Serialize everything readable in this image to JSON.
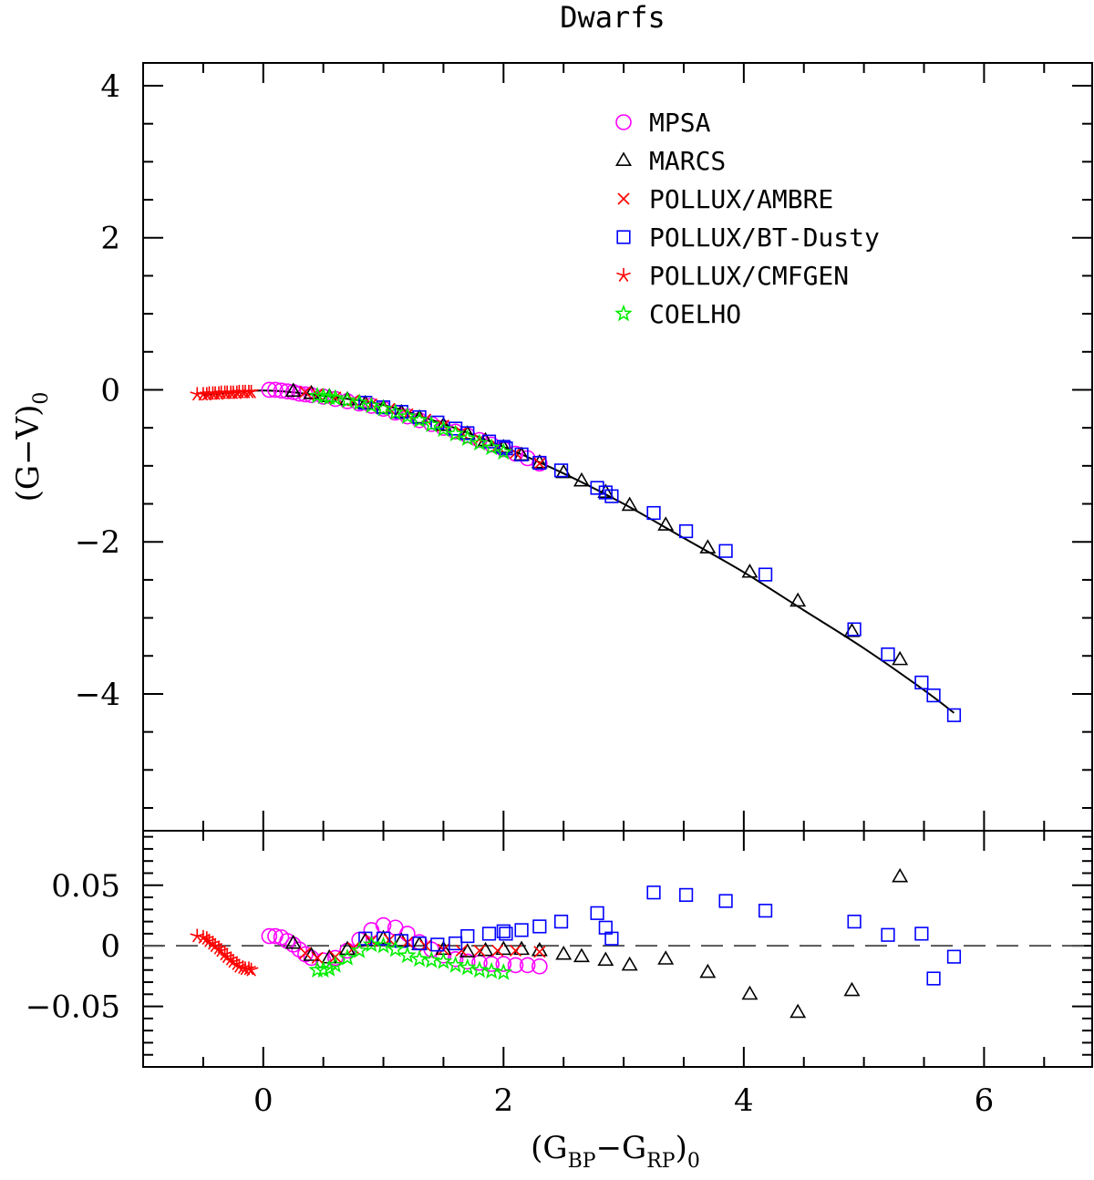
{
  "chart_data": {
    "type": "scatter",
    "title": "Dwarfs",
    "xlabel": {
      "base": "(G",
      "sub1": "BP",
      "mid": "−G",
      "sub2": "RP",
      "close": ")",
      "sub3": "0"
    },
    "ylabel_top": {
      "base": "(G−V)",
      "sub": "0"
    },
    "xlim": [
      -1,
      6.9
    ],
    "top_panel": {
      "ylim": [
        -5.8,
        4.3
      ],
      "yticks": [
        -4,
        -2,
        0,
        2,
        4
      ],
      "ytick_labels": [
        "−4",
        "−2",
        "0",
        "2",
        "4"
      ],
      "fit_curve_x": [
        -0.5,
        0,
        0.5,
        1,
        1.5,
        2,
        2.5,
        3,
        3.5,
        4,
        4.5,
        5,
        5.5,
        5.75
      ],
      "fit_curve_y": [
        -0.07,
        -0.01,
        -0.08,
        -0.2,
        -0.45,
        -0.75,
        -1.1,
        -1.5,
        -1.95,
        -2.4,
        -2.9,
        -3.4,
        -3.95,
        -4.25
      ]
    },
    "bottom_panel": {
      "ylim": [
        -0.1,
        0.095
      ],
      "yticks": [
        -0.05,
        0,
        0.05
      ],
      "ytick_labels": [
        "−0.05",
        "0",
        "0.05"
      ],
      "reference_line": 0
    },
    "xticks": [
      0,
      2,
      4,
      6
    ],
    "xtick_labels": [
      "0",
      "2",
      "4",
      "6"
    ],
    "legend_position": "top-right",
    "series": [
      {
        "name": "MPSA",
        "marker": "circle",
        "color": "#ff00ff",
        "x": [
          0.05,
          0.1,
          0.15,
          0.2,
          0.25,
          0.3,
          0.35,
          0.4,
          0.5,
          0.6,
          0.7,
          0.8,
          0.9,
          1.0,
          1.1,
          1.2,
          1.3,
          1.4,
          1.5,
          1.6,
          1.7,
          1.8,
          1.9,
          2.0,
          2.1,
          2.2,
          2.3
        ],
        "y": [
          0.0,
          0.0,
          -0.01,
          -0.02,
          -0.03,
          -0.05,
          -0.06,
          -0.07,
          -0.09,
          -0.12,
          -0.15,
          -0.18,
          -0.21,
          -0.25,
          -0.3,
          -0.35,
          -0.4,
          -0.45,
          -0.5,
          -0.55,
          -0.6,
          -0.66,
          -0.72,
          -0.78,
          -0.84,
          -0.9,
          -0.97
        ],
        "resid": [
          0.008,
          0.008,
          0.007,
          0.004,
          0.001,
          -0.003,
          -0.007,
          -0.01,
          -0.012,
          -0.01,
          -0.004,
          0.005,
          0.013,
          0.017,
          0.015,
          0.01,
          0.003,
          -0.003,
          -0.008,
          -0.011,
          -0.013,
          -0.014,
          -0.015,
          -0.015,
          -0.016,
          -0.016,
          -0.017
        ]
      },
      {
        "name": "MARCS",
        "marker": "triangle",
        "color": "#000000",
        "x": [
          0.25,
          0.4,
          0.55,
          0.7,
          0.85,
          1.0,
          1.15,
          1.3,
          1.5,
          1.7,
          1.85,
          2.0,
          2.15,
          2.3,
          2.5,
          2.65,
          2.85,
          3.05,
          3.35,
          3.7,
          4.05,
          4.45,
          4.9,
          5.3
        ],
        "y": [
          -0.02,
          -0.05,
          -0.09,
          -0.13,
          -0.18,
          -0.24,
          -0.3,
          -0.37,
          -0.47,
          -0.58,
          -0.67,
          -0.76,
          -0.86,
          -0.96,
          -1.09,
          -1.2,
          -1.35,
          -1.52,
          -1.78,
          -2.08,
          -2.4,
          -2.78,
          -3.18,
          -3.55
        ],
        "resid": [
          0.002,
          -0.008,
          -0.01,
          -0.003,
          0.004,
          0.006,
          0.004,
          0.001,
          -0.003,
          -0.005,
          -0.004,
          -0.003,
          -0.003,
          -0.004,
          -0.007,
          -0.009,
          -0.012,
          -0.016,
          -0.011,
          -0.022,
          -0.04,
          -0.055,
          -0.037,
          0.057
        ]
      },
      {
        "name": "POLLUX/AMBRE",
        "marker": "cross",
        "color": "#ff0000",
        "x": [
          0.35,
          0.45,
          0.6,
          0.75,
          0.9,
          1.05,
          1.2,
          1.35,
          1.5,
          1.65,
          1.8,
          1.95,
          2.1,
          2.3
        ],
        "y": [
          -0.03,
          -0.06,
          -0.1,
          -0.14,
          -0.19,
          -0.25,
          -0.32,
          -0.39,
          -0.47,
          -0.56,
          -0.65,
          -0.74,
          -0.83,
          -0.97
        ],
        "resid": [
          -0.006,
          -0.01,
          -0.009,
          -0.002,
          0.004,
          0.005,
          0.003,
          0.0,
          -0.003,
          -0.004,
          -0.004,
          -0.004,
          -0.004,
          -0.005
        ]
      },
      {
        "name": "POLLUX/BT-Dusty",
        "marker": "square",
        "color": "#0000ff",
        "x": [
          0.85,
          1.0,
          1.15,
          1.3,
          1.45,
          1.6,
          1.7,
          1.88,
          2.0,
          2.02,
          2.15,
          2.3,
          2.48,
          2.78,
          2.85,
          2.9,
          3.25,
          3.52,
          3.85,
          4.18,
          4.92,
          5.2,
          5.48,
          5.58,
          5.75
        ],
        "y": [
          -0.17,
          -0.23,
          -0.29,
          -0.36,
          -0.43,
          -0.51,
          -0.57,
          -0.68,
          -0.75,
          -0.77,
          -0.85,
          -0.96,
          -1.06,
          -1.29,
          -1.35,
          -1.4,
          -1.62,
          -1.86,
          -2.12,
          -2.43,
          -3.15,
          -3.48,
          -3.85,
          -4.02,
          -4.28
        ],
        "resid": [
          0.006,
          0.006,
          0.004,
          0.002,
          0.001,
          0.002,
          0.008,
          0.01,
          0.012,
          0.01,
          0.013,
          0.016,
          0.02,
          0.027,
          0.015,
          0.006,
          0.044,
          0.042,
          0.037,
          0.029,
          0.02,
          0.009,
          0.01,
          -0.027,
          -0.009
        ]
      },
      {
        "name": "POLLUX/CMFGEN",
        "marker": "asterisk",
        "color": "#ff0000",
        "x": [
          -0.55,
          -0.5,
          -0.47,
          -0.45,
          -0.42,
          -0.4,
          -0.37,
          -0.35,
          -0.32,
          -0.3,
          -0.27,
          -0.25,
          -0.22,
          -0.2,
          -0.17,
          -0.15,
          -0.12,
          -0.1
        ],
        "y": [
          -0.06,
          -0.06,
          -0.06,
          -0.05,
          -0.05,
          -0.05,
          -0.05,
          -0.04,
          -0.04,
          -0.04,
          -0.04,
          -0.04,
          -0.04,
          -0.03,
          -0.03,
          -0.03,
          -0.03,
          -0.03
        ],
        "resid": [
          0.008,
          0.007,
          0.006,
          0.004,
          0.002,
          0.0,
          -0.002,
          -0.004,
          -0.007,
          -0.009,
          -0.011,
          -0.013,
          -0.015,
          -0.017,
          -0.018,
          -0.019,
          -0.019,
          -0.02
        ]
      },
      {
        "name": "COELHO",
        "marker": "star",
        "color": "#00ee00",
        "x": [
          0.45,
          0.5,
          0.55,
          0.6,
          0.7,
          0.8,
          0.9,
          1.0,
          1.1,
          1.2,
          1.3,
          1.4,
          1.5,
          1.6,
          1.7,
          1.8,
          1.9,
          2.0
        ],
        "y": [
          -0.08,
          -0.09,
          -0.1,
          -0.11,
          -0.14,
          -0.17,
          -0.21,
          -0.25,
          -0.3,
          -0.35,
          -0.4,
          -0.46,
          -0.52,
          -0.58,
          -0.64,
          -0.7,
          -0.76,
          -0.82
        ],
        "resid": [
          -0.02,
          -0.02,
          -0.019,
          -0.016,
          -0.01,
          -0.004,
          0.001,
          0.0,
          -0.003,
          -0.008,
          -0.011,
          -0.012,
          -0.013,
          -0.016,
          -0.018,
          -0.02,
          -0.021,
          -0.022
        ]
      }
    ]
  }
}
